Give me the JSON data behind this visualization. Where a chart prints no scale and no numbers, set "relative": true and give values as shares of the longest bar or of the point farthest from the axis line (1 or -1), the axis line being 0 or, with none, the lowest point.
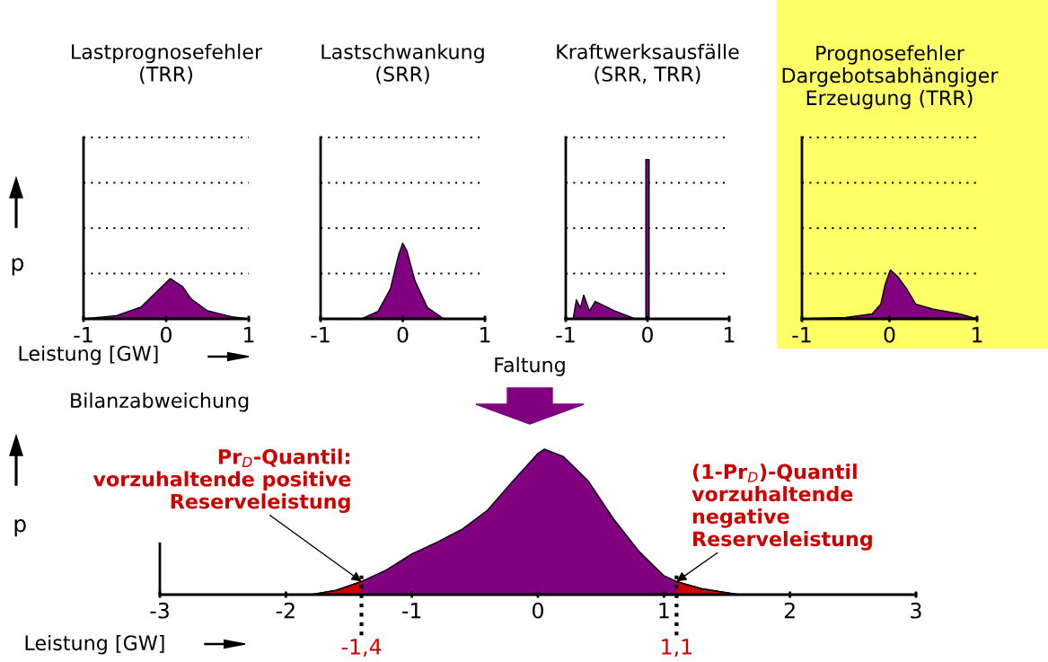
{
  "chart_data": [
    {
      "type": "area",
      "title": "Lastprognosefehler\n(TRR)",
      "ylabel": "p",
      "xlabel": "Leistung [GW]",
      "relative": true,
      "tick_labels": "x",
      "xlim": [
        -1,
        1
      ],
      "xticks": [
        -1,
        0,
        1
      ],
      "ref_lines": [
        {
          "axis": "y",
          "value": 1.125,
          "color": "#000000",
          "line_style": "dotted"
        },
        {
          "axis": "y",
          "value": 2.25,
          "color": "#000000",
          "line_style": "dotted"
        },
        {
          "axis": "y",
          "value": 3.375,
          "color": "#000000",
          "line_style": "dotted"
        },
        {
          "axis": "y",
          "value": 4.5,
          "color": "#000000",
          "line_style": "dotted"
        }
      ],
      "series": [
        {
          "color": "#800080",
          "x": [
            -1,
            -0.6,
            -0.3,
            -0.1,
            0.05,
            0.2,
            0.3,
            0.5,
            0.8,
            1
          ],
          "values": [
            0,
            0.08,
            0.3,
            0.7,
            1,
            0.8,
            0.5,
            0.2,
            0.05,
            0
          ]
        }
      ]
    },
    {
      "type": "area",
      "title": "Lastschwankung\n(SRR)",
      "relative": true,
      "tick_labels": "x",
      "xlim": [
        -1,
        1
      ],
      "xticks": [
        -1,
        0,
        1
      ],
      "ref_lines": [
        {
          "axis": "y",
          "value": 0.6,
          "color": "#000000",
          "line_style": "dotted"
        },
        {
          "axis": "y",
          "value": 1.2,
          "color": "#000000",
          "line_style": "dotted"
        },
        {
          "axis": "y",
          "value": 1.8,
          "color": "#000000",
          "line_style": "dotted"
        },
        {
          "axis": "y",
          "value": 2.4,
          "color": "#000000",
          "line_style": "dotted"
        }
      ],
      "series": [
        {
          "color": "#800080",
          "x": [
            -1,
            -0.5,
            -0.3,
            -0.15,
            -0.05,
            0,
            0.05,
            0.15,
            0.3,
            0.5,
            1
          ],
          "values": [
            0,
            0,
            0.1,
            0.4,
            0.85,
            1,
            0.9,
            0.5,
            0.15,
            0,
            0
          ]
        }
      ]
    },
    {
      "type": "area",
      "title": "Kraftwerksausfälle\n(SRR, TRR)",
      "relative": true,
      "tick_labels": "x",
      "xlim": [
        -1,
        1
      ],
      "xticks": [
        -1,
        0,
        1
      ],
      "ref_lines": [
        {
          "axis": "y",
          "value": 0.285,
          "color": "#000000",
          "line_style": "dotted"
        },
        {
          "axis": "y",
          "value": 0.57,
          "color": "#000000",
          "line_style": "dotted"
        },
        {
          "axis": "y",
          "value": 0.855,
          "color": "#000000",
          "line_style": "dotted"
        },
        {
          "axis": "y",
          "value": 1.14,
          "color": "#000000",
          "line_style": "dotted"
        }
      ],
      "series": [
        {
          "color": "#800080",
          "x": [
            -1,
            -0.91,
            -0.87,
            -0.82,
            -0.78,
            -0.71,
            -0.64,
            -0.4,
            -0.15,
            -0.02,
            -0.02,
            0.02,
            0.02,
            1
          ],
          "values": [
            0,
            0,
            0.12,
            0.07,
            0.15,
            0.05,
            0.11,
            0.05,
            0,
            0,
            1,
            1,
            0,
            0
          ]
        }
      ]
    },
    {
      "type": "area",
      "title": "Prognosefehler\nDargebotsabhängiger\nErzeugung (TRR)",
      "relative": true,
      "tick_labels": "x",
      "xlim": [
        -1,
        1
      ],
      "xticks": [
        -1,
        0,
        1
      ],
      "ref_lines": [
        {
          "axis": "y",
          "value": 0.925,
          "color": "#000000",
          "line_style": "dotted"
        },
        {
          "axis": "y",
          "value": 1.85,
          "color": "#000000",
          "line_style": "dotted"
        },
        {
          "axis": "y",
          "value": 2.775,
          "color": "#000000",
          "line_style": "dotted"
        },
        {
          "axis": "y",
          "value": 3.7,
          "color": "#000000",
          "line_style": "dotted"
        }
      ],
      "series": [
        {
          "color": "#800080",
          "x": [
            -1,
            -0.5,
            -0.2,
            -0.1,
            -0.05,
            0.01,
            0.1,
            0.2,
            0.3,
            0.5,
            0.8,
            1
          ],
          "values": [
            0,
            0.03,
            0.1,
            0.3,
            0.7,
            1,
            0.85,
            0.6,
            0.3,
            0.2,
            0.1,
            0
          ]
        }
      ]
    },
    {
      "type": "area",
      "title": "Bilanzabweichung",
      "ylabel": "p",
      "xlabel": "Leistung [GW]",
      "relative": true,
      "tick_labels": "x",
      "xlim": [
        -3,
        3
      ],
      "xticks": [
        -3,
        -2,
        -1,
        0,
        1,
        2,
        3
      ],
      "series": [
        {
          "color": "#800080",
          "x": [
            -1.8,
            -1.6,
            -1.4,
            -1.2,
            -1.0,
            -0.8,
            -0.6,
            -0.4,
            -0.2,
            0,
            0.05,
            0.2,
            0.4,
            0.6,
            0.8,
            1.0,
            1.1,
            1.3,
            1.6
          ],
          "values": [
            0,
            0.03,
            0.09,
            0.17,
            0.28,
            0.36,
            0.45,
            0.58,
            0.78,
            0.97,
            1,
            0.95,
            0.78,
            0.52,
            0.3,
            0.13,
            0.09,
            0.04,
            0
          ]
        },
        {
          "color": "#cc0000",
          "x": [
            -1.8,
            -1.6,
            -1.4
          ],
          "values": [
            0,
            0.03,
            0.09
          ]
        },
        {
          "color": "#cc0000",
          "x": [
            1.1,
            1.3,
            1.6
          ],
          "values": [
            0.09,
            0.04,
            0
          ]
        }
      ],
      "ref_lines": [
        {
          "axis": "x",
          "value": -1.4,
          "label": "-1,4",
          "color": "#000000",
          "line_style": "dotted"
        },
        {
          "axis": "x",
          "value": 1.1,
          "label": "1,1",
          "color": "#000000",
          "line_style": "dotted"
        }
      ],
      "annotations": [
        "Faltung",
        {
          "text": "Pr$_{D}$-Quantil:\nvorzuhaltende positive\nReserveleistung",
          "x": -1.4,
          "y": 0.09
        },
        {
          "text": "(1-Pr$_{D}$)-Quantil\nvorzuhaltende\nnegative\nReserveleistung",
          "x": 1.1,
          "y": 0.09
        }
      ]
    }
  ]
}
